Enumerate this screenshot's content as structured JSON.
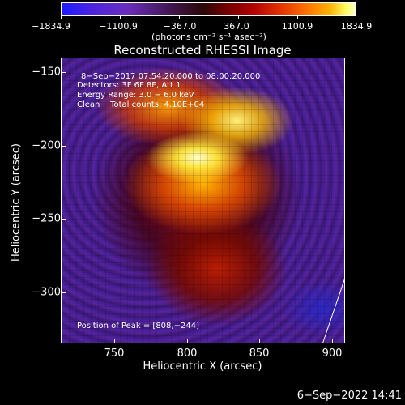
{
  "colorbar": {
    "ticks": [
      "−1834.9",
      "−1100.9",
      "−367.0",
      "367.0",
      "1100.9",
      "1834.9"
    ],
    "units": "(photons cm⁻² s⁻¹ asec⁻²)"
  },
  "title": "Reconstructed RHESSI Image",
  "info": {
    "time": "8−Sep−2017 07:54:20.000 to 08:00:20.000",
    "detectors": "Detectors: 3F 6F 8F, Att 1",
    "energy": "Energy Range: 3.0 − 6.0 keV",
    "clean": "Clean    Total counts: 4.10E+04"
  },
  "peak": "Position of Peak = [808,−244]",
  "axes": {
    "y_label": "Heliocentric Y (arcsec)",
    "x_label": "Heliocentric X (arcsec)",
    "y_ticks": [
      "−150",
      "−200",
      "−250",
      "−300"
    ],
    "x_ticks": [
      "750",
      "800",
      "850",
      "900"
    ]
  },
  "timestamp": "6−Sep−2022 14:41"
}
